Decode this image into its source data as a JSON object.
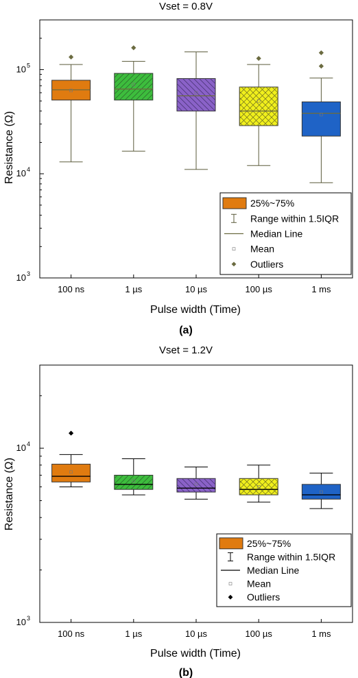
{
  "chart_data": [
    {
      "type": "box",
      "title": "Vset = 0.8V",
      "panel_label": "(a)",
      "xlabel": "Pulse width (Time)",
      "ylabel": "Resistance (Ω)",
      "yscale": "log",
      "ylim": [
        1000,
        300000
      ],
      "yticks": [
        {
          "value": 1000,
          "base": "10",
          "exp": "3"
        },
        {
          "value": 10000,
          "base": "10",
          "exp": "4"
        },
        {
          "value": 100000,
          "base": "10",
          "exp": "5"
        }
      ],
      "categories": [
        "100 ns",
        "1 µs",
        "10 µs",
        "100 µs",
        "1 ms"
      ],
      "boxes": [
        {
          "category": "100 ns",
          "whisker_low": 13000,
          "q1": 51000,
          "median": 64000,
          "q3": 79000,
          "whisker_high": 112000,
          "mean": 63000,
          "outliers": [
            132000
          ],
          "color": "#e07b10",
          "pattern": "none"
        },
        {
          "category": "1 µs",
          "whisker_low": 16500,
          "q1": 51000,
          "median": 65000,
          "q3": 92000,
          "whisker_high": 120000,
          "mean": 72000,
          "outliers": [
            162000
          ],
          "color": "#3dbd3d",
          "pattern": "forward"
        },
        {
          "category": "10 µs",
          "whisker_low": 11000,
          "q1": 40000,
          "median": 56000,
          "q3": 82000,
          "whisker_high": 148000,
          "mean": 60000,
          "outliers": [],
          "color": "#8a62c8",
          "pattern": "back"
        },
        {
          "category": "100 µs",
          "whisker_low": 12000,
          "q1": 29000,
          "median": 40000,
          "q3": 68000,
          "whisker_high": 112000,
          "mean": 50000,
          "outliers": [
            128000
          ],
          "color": "#f0ef1c",
          "pattern": "cross"
        },
        {
          "category": "1 ms",
          "whisker_low": 8200,
          "q1": 23000,
          "median": 38000,
          "q3": 49000,
          "whisker_high": 83000,
          "mean": 37000,
          "outliers": [
            108000,
            145000
          ],
          "color": "#1f63c6",
          "pattern": "none"
        }
      ],
      "styles": {
        "median_color": "#6b6b40",
        "whisker_color": "#5a5a3a",
        "outlier_color": "#6b6b40",
        "outlier_marker": "diamond"
      },
      "legend": {
        "position": "bottom-right",
        "items": [
          {
            "kind": "box",
            "label": "25%~75%",
            "color": "#e07b10"
          },
          {
            "kind": "whisker",
            "label": "Range within 1.5IQR"
          },
          {
            "kind": "median",
            "label": "Median Line"
          },
          {
            "kind": "mean",
            "label": "Mean"
          },
          {
            "kind": "outlier",
            "label": "Outliers"
          }
        ]
      }
    },
    {
      "type": "box",
      "title": "Vset = 1.2V",
      "panel_label": "(b)",
      "xlabel": "Pulse width (Time)",
      "ylabel": "Resistance (Ω)",
      "yscale": "log",
      "ylim": [
        1000,
        30000
      ],
      "yticks": [
        {
          "value": 1000,
          "base": "10",
          "exp": "3"
        },
        {
          "value": 10000,
          "base": "10",
          "exp": "4"
        }
      ],
      "categories": [
        "100 ns",
        "1 µs",
        "10 µs",
        "100 µs",
        "1 ms"
      ],
      "boxes": [
        {
          "category": "100 ns",
          "whisker_low": 6000,
          "q1": 6400,
          "median": 6900,
          "q3": 8100,
          "whisker_high": 9200,
          "mean": 7300,
          "outliers": [
            12200
          ],
          "color": "#e07b10",
          "pattern": "none"
        },
        {
          "category": "1 µs",
          "whisker_low": 5400,
          "q1": 5800,
          "median": 6200,
          "q3": 7000,
          "whisker_high": 8700,
          "mean": 6500,
          "outliers": [],
          "color": "#3dbd3d",
          "pattern": "forward"
        },
        {
          "category": "10 µs",
          "whisker_low": 5100,
          "q1": 5600,
          "median": 5900,
          "q3": 6700,
          "whisker_high": 7800,
          "mean": 6200,
          "outliers": [],
          "color": "#8a62c8",
          "pattern": "back"
        },
        {
          "category": "100 µs",
          "whisker_low": 4900,
          "q1": 5400,
          "median": 5800,
          "q3": 6700,
          "whisker_high": 8000,
          "mean": 6000,
          "outliers": [],
          "color": "#f0ef1c",
          "pattern": "cross"
        },
        {
          "category": "1 ms",
          "whisker_low": 4500,
          "q1": 5100,
          "median": 5400,
          "q3": 6200,
          "whisker_high": 7200,
          "mean": 5600,
          "outliers": [],
          "color": "#1f63c6",
          "pattern": "none"
        }
      ],
      "styles": {
        "median_color": "#000000",
        "whisker_color": "#000000",
        "outlier_color": "#000000",
        "outlier_marker": "diamond"
      },
      "legend": {
        "position": "bottom-right",
        "items": [
          {
            "kind": "box",
            "label": "25%~75%",
            "color": "#e07b10"
          },
          {
            "kind": "whisker",
            "label": "Range within 1.5IQR"
          },
          {
            "kind": "median",
            "label": "Median Line"
          },
          {
            "kind": "mean",
            "label": "Mean"
          },
          {
            "kind": "outlier",
            "label": "Outliers"
          }
        ]
      }
    }
  ]
}
